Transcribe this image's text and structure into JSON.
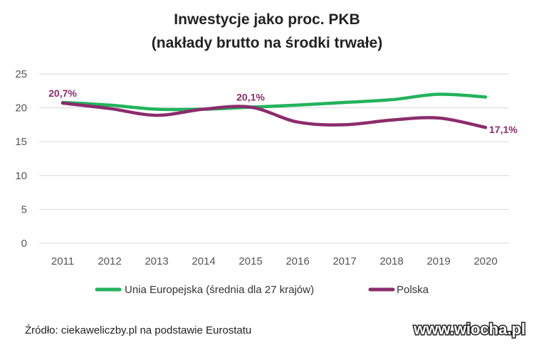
{
  "chart_data": {
    "type": "line",
    "title_line1": "Inwestycje jako proc. PKB",
    "title_line2": "(nakłady brutto na środki trwałe)",
    "x": [
      "2011",
      "2012",
      "2013",
      "2014",
      "2015",
      "2016",
      "2017",
      "2018",
      "2019",
      "2020"
    ],
    "ylim": [
      0,
      25
    ],
    "yticks": [
      0,
      5,
      10,
      15,
      20,
      25
    ],
    "grid": true,
    "legend_position": "bottom",
    "series": [
      {
        "name": "Unia Europejska (średnia dla 27 krajów)",
        "color": "#22b35c",
        "values": [
          20.8,
          20.4,
          19.8,
          19.8,
          20.1,
          20.4,
          20.8,
          21.2,
          22.0,
          21.6
        ]
      },
      {
        "name": "Polska",
        "color": "#8b2c6c",
        "values": [
          20.7,
          19.9,
          18.9,
          19.8,
          20.1,
          17.9,
          17.5,
          18.2,
          18.5,
          17.1
        ]
      }
    ],
    "annotations": [
      {
        "text": "20,7%",
        "series": 1,
        "index": 0
      },
      {
        "text": "20,1%",
        "series": 1,
        "index": 4
      },
      {
        "text": "17,1%",
        "series": 1,
        "index": 9
      }
    ]
  },
  "source": "Źródło: ciekaweliczby.pl na podstawie Eurostatu",
  "watermark": "www.wiocha.pl"
}
